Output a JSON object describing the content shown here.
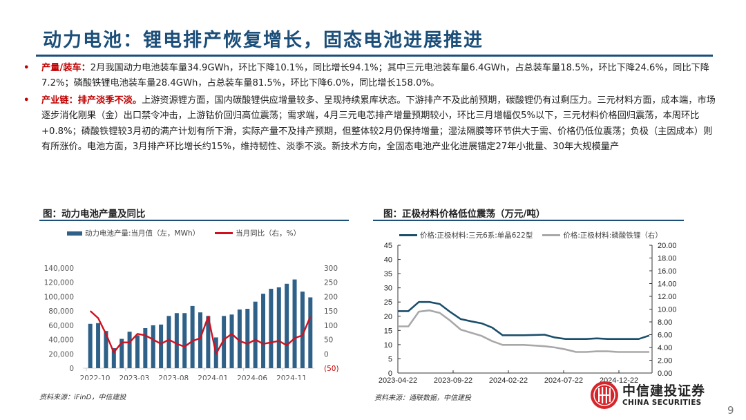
{
  "header": {
    "title": "动力电池：锂电排产恢复增长，固态电池进展推进"
  },
  "bullets": [
    {
      "lead": "产量/装车：",
      "text": "2月我国动力电池装车量34.9GWh，环比下降10.1%，同比增长94.1%；其中三元电池装车量6.4GWh，占总装车量18.5%，环比下降24.6%，同比下降7.2%；磷酸铁锂电池装车量28.4GWh，占总装车量81.5%，环比下降6.0%，同比增长158.0%。"
    },
    {
      "lead": "产业链：排产淡季不淡。",
      "text": "上游资源锂方面，国内碳酸锂供应增量较多、呈现持续累库状态。下游排产不及此前预期，碳酸锂仍有过剩压力。三元材料方面，成本端，市场逐步消化刚果（金）出口禁令冲击，上游钴价回归高位震荡；需求端，4月三元电芯排产增量预期较小，环比三月增幅仅5%以下，三元材料价格回归震荡，本周环比+0.8%；磷酸铁锂较3月初的满产计划有所下滑，实际产量不及排产预期，但整体较2月仍保持增量；湿法隔膜等环节供大于需、价格仍低位震荡；负极（主因成本）则有所涨价。电池方面，3月排产环比增长约15%，维持韧性、淡季不淡。新技术方向，全固态电池产业化进展锚定27年小批量、30年大规模量产"
    }
  ],
  "left_figure": {
    "title": "图：动力电池产量及同比",
    "source": "资料来源：iFinD，中信建投",
    "legend": {
      "bar": "动力电池产量:当月值（左，MWh）",
      "line": "当月同比（右，%）"
    }
  },
  "right_figure": {
    "title": "图：正极材料价格低位震荡（万元/吨）",
    "source": "资料来源：通联数据，中信建投",
    "legend": {
      "series1": "价格:正极材料:三元6系:单晶622型",
      "series2": "价格:正极材料:磷酸铁锂（右）"
    }
  },
  "chart_data": [
    {
      "type": "bar",
      "title": "动力电池产量及同比",
      "xlabel": "",
      "ylabel": "MWh",
      "y2label": "%",
      "ylim": [
        0,
        140000
      ],
      "y2lim": [
        -50,
        300
      ],
      "yticks": [
        "0",
        "20,000",
        "40,000",
        "60,000",
        "80,000",
        "100,000",
        "120,000",
        "140,000"
      ],
      "y2ticks": [
        "(50)",
        "0",
        "50",
        "100",
        "150",
        "200",
        "250",
        "300"
      ],
      "xticks": [
        "2022-10",
        "2023-03",
        "2023-08",
        "2024-01",
        "2024-06",
        "2024-11"
      ],
      "categories": [
        "2022-10",
        "2022-11",
        "2022-12",
        "2023-01",
        "2023-02",
        "2023-03",
        "2023-04",
        "2023-05",
        "2023-06",
        "2023-07",
        "2023-08",
        "2023-09",
        "2023-10",
        "2023-11",
        "2023-12",
        "2024-01",
        "2024-02",
        "2024-03",
        "2024-04",
        "2024-05",
        "2024-06",
        "2024-07",
        "2024-08",
        "2024-09",
        "2024-10",
        "2024-11",
        "2024-12",
        "2025-01",
        "2025-02"
      ],
      "series": [
        {
          "name": "动力电池产量:当月值（左，MWh）",
          "type": "bar",
          "axis": "left",
          "color": "#2e6088",
          "values": [
            62000,
            63000,
            52000,
            28000,
            41000,
            51000,
            46000,
            56000,
            60000,
            61000,
            73000,
            77000,
            77000,
            87000,
            78000,
            73000,
            43000,
            73000,
            75000,
            82000,
            83000,
            93000,
            104000,
            111000,
            113000,
            118000,
            124000,
            107000,
            99000
          ]
        },
        {
          "name": "当月同比（右，%）",
          "type": "line",
          "axis": "right",
          "color": "#d0101e",
          "values": [
            150,
            125,
            70,
            5,
            40,
            40,
            70,
            65,
            50,
            35,
            50,
            35,
            25,
            45,
            55,
            130,
            0,
            50,
            70,
            45,
            35,
            50,
            35,
            40,
            45,
            30,
            55,
            65,
            130
          ]
        }
      ],
      "legend_position": "top",
      "grid": false
    },
    {
      "type": "line",
      "title": "正极材料价格低位震荡（万元/吨）",
      "xlabel": "",
      "ylabel": "万元/吨",
      "ylim": [
        0,
        45
      ],
      "y2lim": [
        0,
        20
      ],
      "yticks": [
        "0",
        "5",
        "10",
        "15",
        "20",
        "25",
        "30",
        "35",
        "40",
        "45"
      ],
      "y2ticks": [
        "0.00",
        "2.00",
        "4.00",
        "6.00",
        "8.00",
        "10.00",
        "12.00",
        "14.00",
        "16.00",
        "18.00",
        "20.00"
      ],
      "xticks": [
        "2023-04-22",
        "2023-09-22",
        "2024-02-22",
        "2024-07-22",
        "2024-12-22"
      ],
      "x": [
        "2023-04-22",
        "2023-05-07",
        "2023-05-22",
        "2023-06-22",
        "2023-07-22",
        "2023-08-22",
        "2023-09-22",
        "2023-10-22",
        "2023-11-22",
        "2023-12-22",
        "2024-01-22",
        "2024-02-22",
        "2024-03-22",
        "2024-04-22",
        "2024-05-22",
        "2024-06-22",
        "2024-07-22",
        "2024-08-22",
        "2024-09-22",
        "2024-10-22",
        "2024-11-22",
        "2024-12-22",
        "2025-01-22",
        "2025-02-22",
        "2025-03-22"
      ],
      "series": [
        {
          "name": "价格:正极材料:三元6系:单晶622型",
          "axis": "left",
          "color": "#1b4e6b",
          "values": [
            21.8,
            21.8,
            25.0,
            25.0,
            24.3,
            21.5,
            19.0,
            18.2,
            17.5,
            16.0,
            13.3,
            13.3,
            13.3,
            13.4,
            13.5,
            12.5,
            12.0,
            12.0,
            12.0,
            12.2,
            12.0,
            12.0,
            12.0,
            12.0,
            13.2
          ]
        },
        {
          "name": "价格:正极材料:磷酸铁锂（右）",
          "axis": "right",
          "color": "#a8a8a8",
          "values": [
            7.3,
            7.3,
            9.6,
            9.8,
            9.4,
            8.2,
            6.8,
            6.3,
            5.8,
            5.0,
            4.4,
            4.4,
            4.4,
            4.3,
            4.2,
            4.0,
            3.7,
            3.3,
            3.3,
            3.4,
            3.4,
            3.3,
            3.3,
            3.3,
            3.3
          ]
        }
      ],
      "legend_position": "top",
      "grid": false
    }
  ],
  "footer": {
    "logo_cn": "中信建投证券",
    "logo_en": "CHINA SECURITIES",
    "page_number": "9"
  },
  "colors": {
    "title_blue": "#1b4e79",
    "accent_red": "#c00000",
    "bar_blue": "#2e6088",
    "line_red": "#d0101e",
    "ncm_line": "#1b4e6b",
    "lfp_line": "#a8a8a8",
    "logo_red": "#d7262b"
  }
}
